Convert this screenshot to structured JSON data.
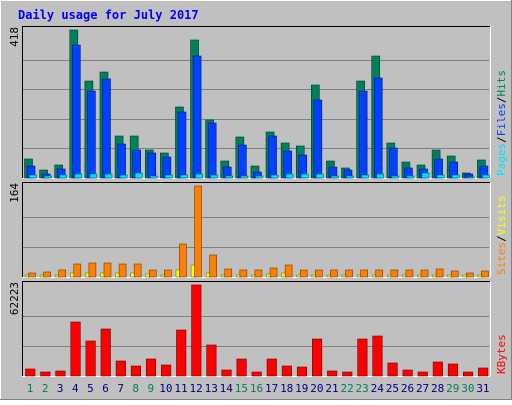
{
  "chart_data": {
    "type": "bar",
    "title": "Daily usage for July 2017",
    "colors": {
      "background": "#C0C0C0",
      "title": "#0000FF",
      "hits": "#00805C",
      "files": "#0040FF",
      "pages": "#00E0FF",
      "visits": "#FFFF00",
      "sites": "#FF8000",
      "kbytes": "#FF0000",
      "weekday_label": "#000080",
      "weekend_label": "#00805C"
    },
    "categories": [
      "1",
      "2",
      "3",
      "4",
      "5",
      "6",
      "7",
      "8",
      "9",
      "10",
      "11",
      "12",
      "13",
      "14",
      "15",
      "16",
      "17",
      "18",
      "19",
      "20",
      "21",
      "22",
      "23",
      "24",
      "25",
      "26",
      "27",
      "28",
      "29",
      "30",
      "31"
    ],
    "weekend_days": [
      "1",
      "2",
      "8",
      "9",
      "15",
      "16",
      "22",
      "23",
      "29",
      "30"
    ],
    "panels": [
      {
        "id": "top",
        "max_label": "418",
        "ylim": [
          0,
          418
        ],
        "legend": [
          "Pages",
          "Files",
          "Hits"
        ],
        "legend_colors": [
          "#00E0FF",
          "#0040FF",
          "#00805C"
        ],
        "series": [
          {
            "name": "Hits",
            "color": "#00805C",
            "values": [
              55,
              22,
              38,
              418,
              275,
              300,
              118,
              120,
              78,
              70,
              200,
              390,
              165,
              48,
              115,
              35,
              130,
              100,
              90,
              262,
              48,
              28,
              275,
              345,
              100,
              45,
              38,
              78,
              62,
              15,
              50
            ]
          },
          {
            "name": "Files",
            "color": "#0040FF",
            "values": [
              35,
              12,
              25,
              375,
              245,
              280,
              95,
              80,
              70,
              60,
              185,
              345,
              155,
              30,
              92,
              18,
              120,
              75,
              65,
              220,
              32,
              22,
              245,
              282,
              85,
              28,
              25,
              55,
              45,
              10,
              35
            ]
          },
          {
            "name": "Pages",
            "color": "#00E0FF",
            "values": [
              8,
              5,
              8,
              12,
              10,
              10,
              8,
              14,
              5,
              8,
              8,
              12,
              8,
              6,
              6,
              5,
              8,
              12,
              10,
              10,
              5,
              5,
              8,
              10,
              6,
              5,
              14,
              8,
              8,
              3,
              8
            ]
          }
        ]
      },
      {
        "id": "middle",
        "max_label": "164",
        "ylim": [
          0,
          164
        ],
        "legend": [
          "Sites",
          "/",
          "Visits"
        ],
        "legend_colors": [
          "#FF8000",
          "#000000",
          "#FFFF00"
        ],
        "series": [
          {
            "name": "Sites",
            "color": "#FF8000",
            "values": [
              8,
              9,
              12,
              23,
              25,
              25,
              23,
              23,
              13,
              12,
              60,
              164,
              40,
              14,
              13,
              13,
              16,
              22,
              12,
              12,
              12,
              12,
              12,
              12,
              12,
              12,
              12,
              15,
              10,
              8,
              10
            ]
          },
          {
            "name": "Visits",
            "color": "#FFFF00",
            "values": [
              4,
              4,
              4,
              8,
              8,
              8,
              8,
              8,
              6,
              4,
              12,
              22,
              8,
              4,
              4,
              4,
              6,
              8,
              4,
              4,
              4,
              4,
              4,
              4,
              4,
              4,
              4,
              4,
              4,
              4,
              4
            ]
          }
        ]
      },
      {
        "id": "bottom",
        "max_label": "62223",
        "ylim": [
          0,
          62223
        ],
        "legend": [
          "KBytes"
        ],
        "legend_colors": [
          "#FF0000"
        ],
        "series": [
          {
            "name": "KBytes",
            "color": "#FF0000",
            "values": [
              4500,
              2500,
              3200,
              37000,
              24000,
              32000,
              10500,
              6500,
              11500,
              7500,
              31500,
              62223,
              21500,
              4000,
              11500,
              2500,
              11500,
              7000,
              6000,
              25000,
              3500,
              3000,
              25500,
              27500,
              9000,
              4000,
              2500,
              9500,
              8500,
              3000,
              5500
            ]
          }
        ]
      }
    ]
  }
}
